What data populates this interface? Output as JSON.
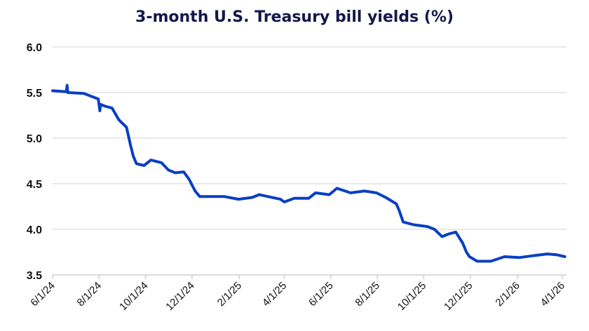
{
  "chart_data": {
    "type": "line",
    "title": "3-month U.S. Treasury bill yields (%)",
    "xlabel": "",
    "ylabel": "",
    "ylim": [
      3.5,
      6.0
    ],
    "yticks": [
      "6.0",
      "5.5",
      "5.0",
      "4.5",
      "4.0",
      "3.5"
    ],
    "xticks": [
      "6/1/24",
      "8/1/24",
      "10/1/24",
      "12/1/24",
      "2/1/25",
      "4/1/25",
      "6/1/25",
      "8/1/25",
      "10/1/25",
      "12/1/25",
      "2/1/26",
      "4/1/26"
    ],
    "grid": true,
    "line_color": "#0a3fc4",
    "series": [
      {
        "x": [
          "2024-06-01",
          "2024-06-19",
          "2024-06-20",
          "2024-06-21",
          "2024-07-12",
          "2024-07-31",
          "2024-08-02",
          "2024-08-03",
          "2024-08-09",
          "2024-08-18",
          "2024-08-27",
          "2024-09-06",
          "2024-09-11",
          "2024-09-15",
          "2024-09-19",
          "2024-09-29",
          "2024-10-08",
          "2024-10-22",
          "2024-10-31",
          "2024-11-09",
          "2024-11-20",
          "2024-11-27",
          "2024-12-05",
          "2024-12-11",
          "2024-12-25",
          "2025-01-12",
          "2025-01-31",
          "2025-02-18",
          "2025-02-27",
          "2025-03-27",
          "2025-04-01",
          "2025-04-14",
          "2025-05-03",
          "2025-05-12",
          "2025-05-30",
          "2025-06-09",
          "2025-06-27",
          "2025-07-15",
          "2025-07-31",
          "2025-08-12",
          "2025-08-26",
          "2025-08-30",
          "2025-09-04",
          "2025-09-18",
          "2025-10-06",
          "2025-10-15",
          "2025-10-25",
          "2025-11-03",
          "2025-11-12",
          "2025-11-21",
          "2025-11-26",
          "2025-11-30",
          "2025-12-10",
          "2025-12-28",
          "2026-01-15",
          "2026-02-03",
          "2026-02-21",
          "2026-03-12",
          "2026-03-25",
          "2026-04-04"
        ],
        "y": [
          5.52,
          5.51,
          5.58,
          5.5,
          5.49,
          5.43,
          5.3,
          5.37,
          5.35,
          5.33,
          5.2,
          5.12,
          4.93,
          4.8,
          4.72,
          4.7,
          4.76,
          4.73,
          4.65,
          4.62,
          4.63,
          4.55,
          4.42,
          4.36,
          4.36,
          4.36,
          4.33,
          4.35,
          4.38,
          4.33,
          4.3,
          4.34,
          4.34,
          4.4,
          4.38,
          4.45,
          4.4,
          4.42,
          4.4,
          4.35,
          4.28,
          4.2,
          4.08,
          4.05,
          4.03,
          4.0,
          3.92,
          3.95,
          3.97,
          3.85,
          3.75,
          3.7,
          3.65,
          3.65,
          3.7,
          3.69,
          3.71,
          3.73,
          3.72,
          3.7
        ]
      }
    ]
  }
}
